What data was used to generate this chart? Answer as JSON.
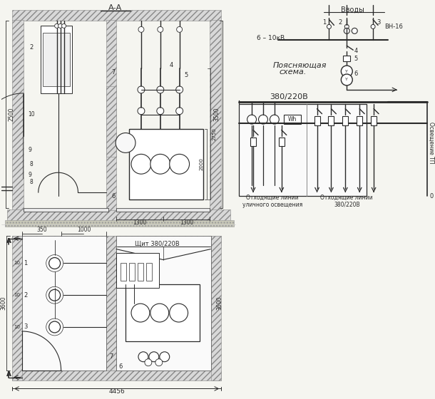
{
  "bg_color": "#f5f5f0",
  "line_color": "#2a2a2a",
  "fig_width": 6.1,
  "fig_height": 5.6,
  "dpi": 100,
  "title_aa": "А-А",
  "label_poyas1": "Поясняющая",
  "label_poyas2": "схема.",
  "label_380_220": "380/220В",
  "label_vvody": "Вводы",
  "label_6_10kv": "6 – 10кВ",
  "label_vn16": "ВН-16",
  "label_schit": "Щит 380/220В",
  "label_4456": "4456",
  "label_3600a": "3600",
  "label_3600b": "3600",
  "label_1300a": "1300",
  "label_1300b": "1300",
  "label_2500": "2500",
  "label_2000": "2000",
  "label_2750": "2750",
  "label_3500": "3500",
  "label_350": "350",
  "label_1000": "1000",
  "label_otx1": "Отходящие линии\nуличного освещения",
  "label_otx2": "Отходящие линии\n380/220В",
  "label_osv": "Освещение ТП",
  "hatch_fc": "#d8d8d8",
  "hatch_ec": "#888888"
}
